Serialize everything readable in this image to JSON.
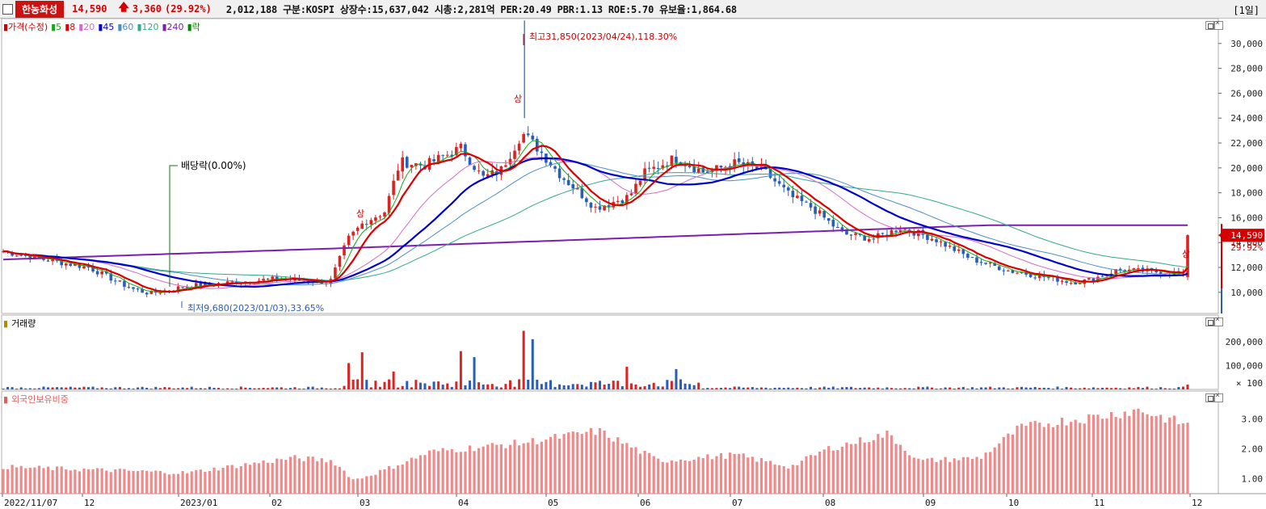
{
  "header": {
    "stock_name": "한농화성",
    "price": "14,590",
    "change": "3,360",
    "change_pct": "(29.92%)",
    "info": "2,012,188  구분:KOSPI 상장수:15,637,042 시총:2,281억 PER:20.49 PBR:1.13 ROE:5.70 유보율:1,864.68",
    "period": "[1일]"
  },
  "price_legend": [
    {
      "label": "가격(수정)",
      "color": "#cc0000"
    },
    {
      "label": "5",
      "color": "#17a817"
    },
    {
      "label": "8",
      "color": "#dd0000"
    },
    {
      "label": "20",
      "color": "#d36bc8"
    },
    {
      "label": "45",
      "color": "#0000cc"
    },
    {
      "label": "60",
      "color": "#4d8ec7"
    },
    {
      "label": "120",
      "color": "#33aa88"
    },
    {
      "label": "240",
      "color": "#7a1fb0"
    },
    {
      "label": "락",
      "color": "#008800"
    }
  ],
  "volume_legend": {
    "label": "거래량",
    "color": "#b8860b"
  },
  "foreign_legend": {
    "label": "외국인보유비중",
    "color": "#e06060"
  },
  "annotations": {
    "high": "최고31,850(2023/04/24),118.30%",
    "low": "최저9,680(2023/01/03),33.65%",
    "dividend": "배당락(0.00%)",
    "limit_up": "상"
  },
  "price_axis": {
    "ticks": [
      "30,000",
      "28,000",
      "26,000",
      "24,000",
      "22,000",
      "20,000",
      "18,000",
      "16,000",
      "14,000",
      "12,000",
      "10,000"
    ],
    "current_label": "14,590",
    "current_pct": "29.92%"
  },
  "volume_axis": {
    "ticks": [
      "200,000",
      "100,000"
    ],
    "unit": "× 100"
  },
  "foreign_axis": {
    "ticks": [
      "3.00",
      "2.00",
      "1.00"
    ]
  },
  "x_axis": {
    "labels": [
      "2022/11/07",
      "12",
      "2023/01",
      "02",
      "03",
      "04",
      "05",
      "06",
      "07",
      "08",
      "09",
      "10",
      "11",
      "12"
    ]
  },
  "colors": {
    "up": "#dd2222",
    "down": "#2a5db8",
    "foreign_bar": "#f08a8a"
  }
}
